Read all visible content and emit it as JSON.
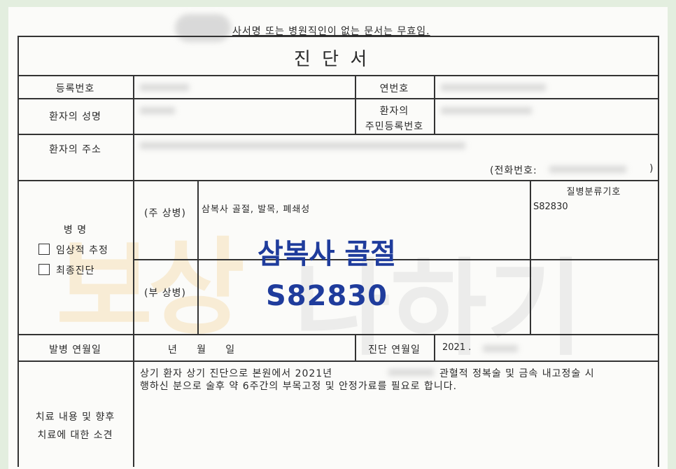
{
  "notice": "사서명 또는 병원직인이 없는 문서는 무효임.",
  "title": "진 단 서",
  "rows": {
    "registration_label": "등록번호",
    "serial_label": "연번호",
    "patient_name_label": "환자의 성명",
    "resident_id_label_1": "환자의",
    "resident_id_label_2": "주민등록번호",
    "address_label": "환자의 주소",
    "phone_label": "(전화번호:",
    "phone_close": ")",
    "disease_label": "병 명",
    "clinical_estimate": "임상적 추정",
    "final_diagnosis": "최종진단",
    "main_disease_label": "(주 상병)",
    "main_disease_value": "삼복사 골절, 발목, 폐쇄성",
    "sub_disease_label": "(부 상병)",
    "code_label": "질병분류기호",
    "code_value": "S82830",
    "onset_label": "발병 연월일",
    "onset_value": "년     월     일",
    "diagnosis_date_label": "진단 연월일",
    "diagnosis_date_value": "2021 .",
    "treatment_label_1": "치료 내용 및 향후",
    "treatment_label_2": "치료에 대한 소견",
    "treatment_line_1a": "상기 환자 상기 진단으로 본원에서 2021년",
    "treatment_line_1b": "관혈적 정복술 및 금속 내고정술 시",
    "treatment_line_2": "행하신 분으로 술후 약 6주간의 부목고정 및 안정가료를 필요로 합니다."
  },
  "overlay": {
    "diagnosis": "삼복사 골절",
    "code": "S82830",
    "color": "#1f3c9c"
  },
  "watermark": "보상나하기"
}
